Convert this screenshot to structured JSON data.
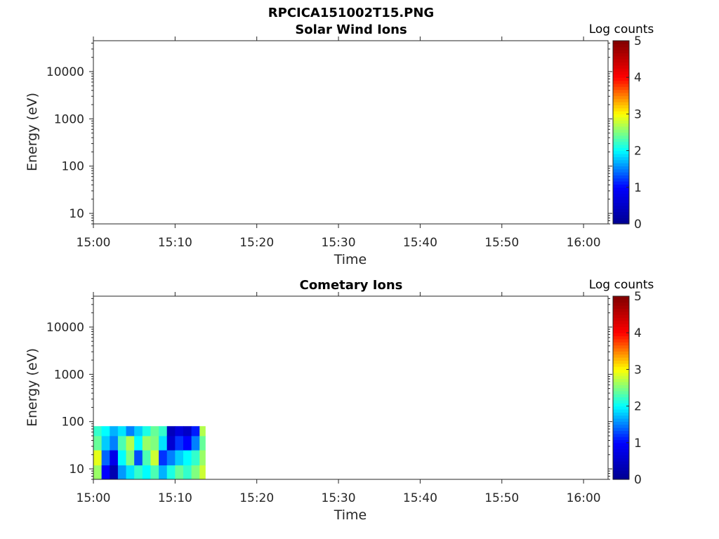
{
  "figure": {
    "title": "RPCICA151002T15.PNG"
  },
  "colors": {
    "axis": "#262626",
    "colormap": [
      "#00008f",
      "#0000ff",
      "#00ffff",
      "#ffff00",
      "#ff0000",
      "#800000"
    ]
  },
  "chart_data": [
    {
      "type": "heatmap",
      "title": "Solar Wind Ions",
      "xlabel": "Time",
      "ylabel": "Energy (eV)",
      "y_scale": "log",
      "xlim": [
        "15:00",
        "16:03"
      ],
      "ylim": [
        6,
        45000
      ],
      "x_ticks": [
        "15:00",
        "15:10",
        "15:20",
        "15:30",
        "15:40",
        "15:50",
        "16:00"
      ],
      "y_ticks": [
        "10",
        "100",
        "1000",
        "10000"
      ],
      "colorbar": {
        "label": "Log counts",
        "range": [
          0,
          5
        ],
        "ticks": [
          "0",
          "1",
          "2",
          "3",
          "4",
          "5"
        ]
      },
      "cells": []
    },
    {
      "type": "heatmap",
      "title": "Cometary Ions",
      "xlabel": "Time",
      "ylabel": "Energy (eV)",
      "y_scale": "log",
      "xlim": [
        "15:00",
        "16:03"
      ],
      "ylim": [
        6,
        45000
      ],
      "x_ticks": [
        "15:00",
        "15:10",
        "15:20",
        "15:30",
        "15:40",
        "15:50",
        "16:00"
      ],
      "y_ticks": [
        "10",
        "100",
        "1000",
        "10000"
      ],
      "colorbar": {
        "label": "Log counts",
        "range": [
          0,
          5
        ],
        "ticks": [
          "0",
          "1",
          "2",
          "3",
          "4",
          "5"
        ]
      },
      "data_extent": {
        "time_start": "15:00",
        "time_end": "15:13.7",
        "energy_min": 6,
        "energy_max": 80
      },
      "cells": [
        {
          "time": "15:00",
          "energy": 6,
          "log_counts": 2.6
        },
        {
          "time": "15:00",
          "energy": 12,
          "log_counts": 2.9
        },
        {
          "time": "15:00",
          "energy": 25,
          "log_counts": 2.4
        },
        {
          "time": "15:00",
          "energy": 50,
          "log_counts": 2.2
        },
        {
          "time": "15:01",
          "energy": 6,
          "log_counts": 1.0
        },
        {
          "time": "15:01",
          "energy": 12,
          "log_counts": 1.4
        },
        {
          "time": "15:01",
          "energy": 25,
          "log_counts": 1.8
        },
        {
          "time": "15:01",
          "energy": 50,
          "log_counts": 2.0
        },
        {
          "time": "15:02",
          "energy": 6,
          "log_counts": 0.3
        },
        {
          "time": "15:02",
          "energy": 12,
          "log_counts": 0.8
        },
        {
          "time": "15:02",
          "energy": 25,
          "log_counts": 1.5
        },
        {
          "time": "15:02",
          "energy": 50,
          "log_counts": 1.7
        },
        {
          "time": "15:03",
          "energy": 6,
          "log_counts": 1.6
        },
        {
          "time": "15:03",
          "energy": 12,
          "log_counts": 2.0
        },
        {
          "time": "15:03",
          "energy": 25,
          "log_counts": 2.3
        },
        {
          "time": "15:03",
          "energy": 50,
          "log_counts": 1.9
        },
        {
          "time": "15:04",
          "energy": 6,
          "log_counts": 1.9
        },
        {
          "time": "15:04",
          "energy": 12,
          "log_counts": 2.5
        },
        {
          "time": "15:04",
          "energy": 25,
          "log_counts": 2.7
        },
        {
          "time": "15:04",
          "energy": 50,
          "log_counts": 1.5
        },
        {
          "time": "15:05",
          "energy": 6,
          "log_counts": 2.2
        },
        {
          "time": "15:05",
          "energy": 12,
          "log_counts": 1.3
        },
        {
          "time": "15:05",
          "energy": 25,
          "log_counts": 2.0
        },
        {
          "time": "15:05",
          "energy": 50,
          "log_counts": 1.8
        },
        {
          "time": "15:06",
          "energy": 6,
          "log_counts": 2.0
        },
        {
          "time": "15:06",
          "energy": 12,
          "log_counts": 2.3
        },
        {
          "time": "15:06",
          "energy": 25,
          "log_counts": 2.6
        },
        {
          "time": "15:06",
          "energy": 50,
          "log_counts": 2.1
        },
        {
          "time": "15:07",
          "energy": 6,
          "log_counts": 2.3
        },
        {
          "time": "15:07",
          "energy": 12,
          "log_counts": 2.8
        },
        {
          "time": "15:07",
          "energy": 25,
          "log_counts": 2.5
        },
        {
          "time": "15:07",
          "energy": 50,
          "log_counts": 2.4
        },
        {
          "time": "15:08",
          "energy": 6,
          "log_counts": 1.7
        },
        {
          "time": "15:08",
          "energy": 12,
          "log_counts": 1.2
        },
        {
          "time": "15:08",
          "energy": 25,
          "log_counts": 1.9
        },
        {
          "time": "15:08",
          "energy": 50,
          "log_counts": 2.2
        },
        {
          "time": "15:09",
          "energy": 6,
          "log_counts": 2.1
        },
        {
          "time": "15:09",
          "energy": 12,
          "log_counts": 1.5
        },
        {
          "time": "15:09",
          "energy": 25,
          "log_counts": 0.6
        },
        {
          "time": "15:09",
          "energy": 50,
          "log_counts": 0.4
        },
        {
          "time": "15:10",
          "energy": 6,
          "log_counts": 2.4
        },
        {
          "time": "15:10",
          "energy": 12,
          "log_counts": 1.8
        },
        {
          "time": "15:10",
          "energy": 25,
          "log_counts": 1.2
        },
        {
          "time": "15:10",
          "energy": 50,
          "log_counts": 0.7
        },
        {
          "time": "15:11",
          "energy": 6,
          "log_counts": 2.2
        },
        {
          "time": "15:11",
          "energy": 12,
          "log_counts": 2.0
        },
        {
          "time": "15:11",
          "energy": 25,
          "log_counts": 1.0
        },
        {
          "time": "15:11",
          "energy": 50,
          "log_counts": 0.5
        },
        {
          "time": "15:12",
          "energy": 6,
          "log_counts": 2.5
        },
        {
          "time": "15:12",
          "energy": 12,
          "log_counts": 2.2
        },
        {
          "time": "15:12",
          "energy": 25,
          "log_counts": 1.5
        },
        {
          "time": "15:12",
          "energy": 50,
          "log_counts": 1.1
        },
        {
          "time": "15:13",
          "energy": 6,
          "log_counts": 2.8
        },
        {
          "time": "15:13",
          "energy": 12,
          "log_counts": 2.6
        },
        {
          "time": "15:13",
          "energy": 25,
          "log_counts": 2.4
        },
        {
          "time": "15:13",
          "energy": 50,
          "log_counts": 2.7
        }
      ]
    }
  ]
}
